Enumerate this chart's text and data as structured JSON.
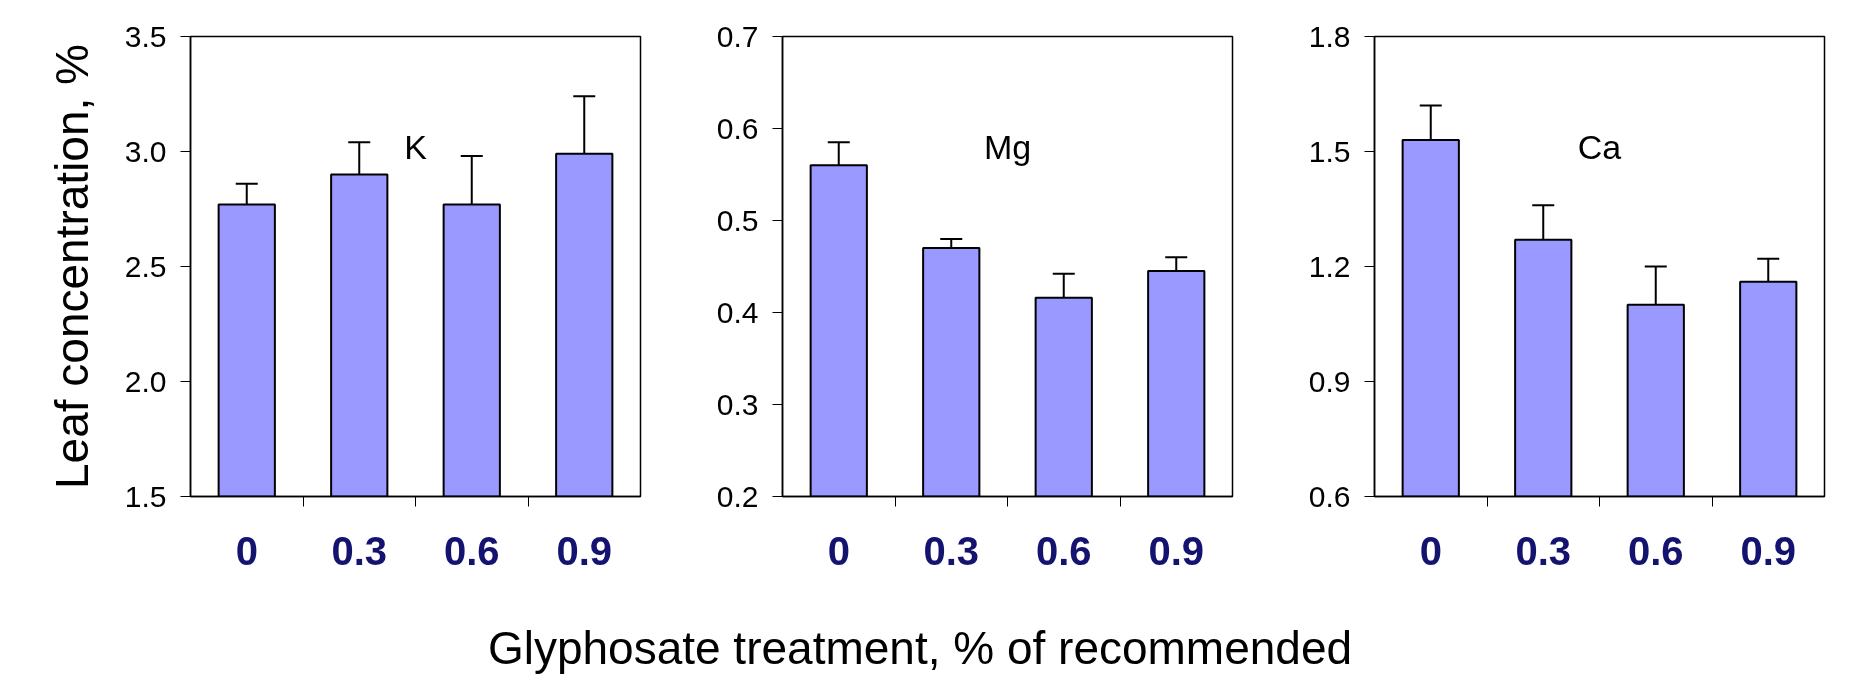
{
  "chart_data": [
    {
      "type": "bar",
      "title": "K",
      "ylabel": "Leaf concentration, %",
      "categories": [
        "0",
        "0.3",
        "0.6",
        "0.9"
      ],
      "values": [
        2.77,
        2.9,
        2.77,
        2.99
      ],
      "errors": [
        [
          2.77,
          2.86
        ],
        [
          2.9,
          3.04
        ],
        [
          2.77,
          2.98
        ],
        [
          2.99,
          3.24
        ]
      ],
      "color": "#9999ff",
      "ylim": [
        1.5,
        3.5
      ],
      "yticks": [
        1.5,
        {
          "value": 2.0,
          "label": "2.0"
        },
        2.5,
        {
          "value": 3.0,
          "label": "3.0"
        },
        3.5
      ]
    },
    {
      "type": "bar",
      "title": "Mg",
      "xlabel": "Glyphosate treatment, % of recommended",
      "categories": [
        "0",
        "0.3",
        "0.6",
        "0.9"
      ],
      "values": [
        0.56,
        0.47,
        0.416,
        0.445
      ],
      "errors": [
        [
          0.56,
          0.585
        ],
        [
          0.47,
          0.48
        ],
        [
          0.416,
          0.442
        ],
        [
          0.445,
          0.46
        ]
      ],
      "color": "#9999ff",
      "ylim": [
        0.2,
        0.7
      ],
      "yticks": [
        0.2,
        0.3,
        0.4,
        0.5,
        0.6,
        0.7
      ]
    },
    {
      "type": "bar",
      "title": "Ca",
      "categories": [
        "0",
        "0.3",
        "0.6",
        "0.9"
      ],
      "values": [
        1.53,
        1.27,
        1.1,
        1.16
      ],
      "errors": [
        [
          1.53,
          1.62
        ],
        [
          1.27,
          1.36
        ],
        [
          1.1,
          1.2
        ],
        [
          1.16,
          1.22
        ]
      ],
      "color": "#9999ff",
      "ylim": [
        0.6,
        1.8
      ],
      "yticks": [
        0.6,
        0.9,
        1.2,
        1.5,
        1.8
      ]
    }
  ]
}
